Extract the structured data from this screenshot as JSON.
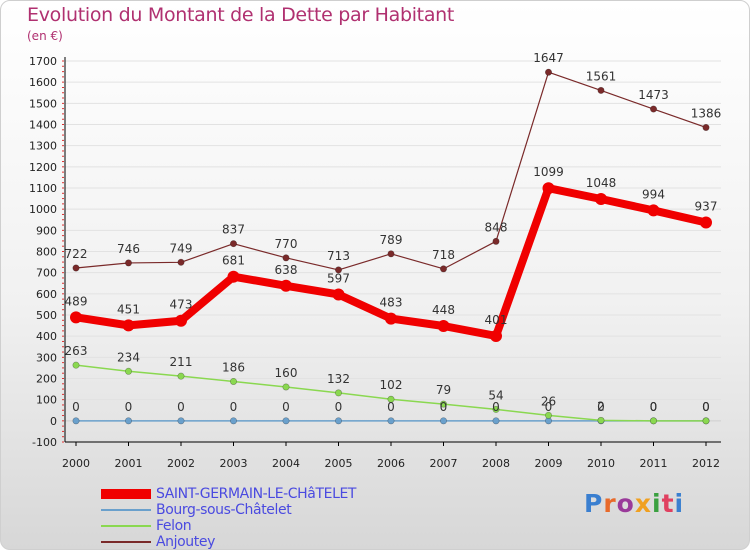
{
  "title": "Evolution du Montant de la Dette par Habitant",
  "unit": "(en €)",
  "logo": {
    "text": "Proxiti",
    "letter_colors": [
      "#3a7fd0",
      "#e86a2a",
      "#9a3a9a",
      "#f0a020",
      "#3aa040",
      "#e04060",
      "#3a7fd0"
    ]
  },
  "chart_data": {
    "type": "line",
    "categories": [
      "2000",
      "2001",
      "2002",
      "2003",
      "2004",
      "2005",
      "2006",
      "2007",
      "2008",
      "2009",
      "2010",
      "2011",
      "2012"
    ],
    "ylim": [
      -100,
      1700
    ],
    "yticks": [
      "-100",
      "0",
      "100",
      "200",
      "300",
      "400",
      "500",
      "600",
      "700",
      "800",
      "900",
      "1000",
      "1100",
      "1200",
      "1300",
      "1400",
      "1500",
      "1600",
      "1700"
    ],
    "grid": true,
    "legend_position": "bottom-left",
    "series": [
      {
        "name": "SAINT-GERMAIN-LE-CHâTELET",
        "color": "#f00000",
        "values": [
          489,
          451,
          473,
          681,
          638,
          597,
          483,
          448,
          401,
          1099,
          1048,
          994,
          937
        ],
        "labels": [
          "489",
          "451",
          "473",
          "681",
          "638",
          "597",
          "483",
          "448",
          "401",
          "1099",
          "1048",
          "994",
          "937"
        ]
      },
      {
        "name": "Bourg-sous-Châtelet",
        "color": "#6aa0cc",
        "values": [
          0,
          0,
          0,
          0,
          0,
          0,
          0,
          0,
          0,
          0,
          0,
          0,
          0
        ],
        "labels": [
          "0",
          "0",
          "0",
          "0",
          "0",
          "0",
          "0",
          "0",
          "0",
          "0",
          "0",
          "0",
          "0"
        ]
      },
      {
        "name": "Felon",
        "color": "#8ad850",
        "values": [
          263,
          234,
          211,
          186,
          160,
          132,
          102,
          79,
          54,
          26,
          2,
          0,
          0
        ],
        "labels": [
          "263",
          "234",
          "211",
          "186",
          "160",
          "132",
          "102",
          "79",
          "54",
          "26",
          "2",
          "0",
          "0"
        ]
      },
      {
        "name": "Anjoutey",
        "color": "#7a2a2a",
        "values": [
          722,
          746,
          749,
          837,
          770,
          713,
          789,
          718,
          848,
          1647,
          1561,
          1473,
          1386
        ],
        "labels": [
          "722",
          "746",
          "749",
          "837",
          "770",
          "713",
          "789",
          "718",
          "848",
          "1647",
          "1561",
          "1473",
          "1386"
        ]
      }
    ]
  }
}
